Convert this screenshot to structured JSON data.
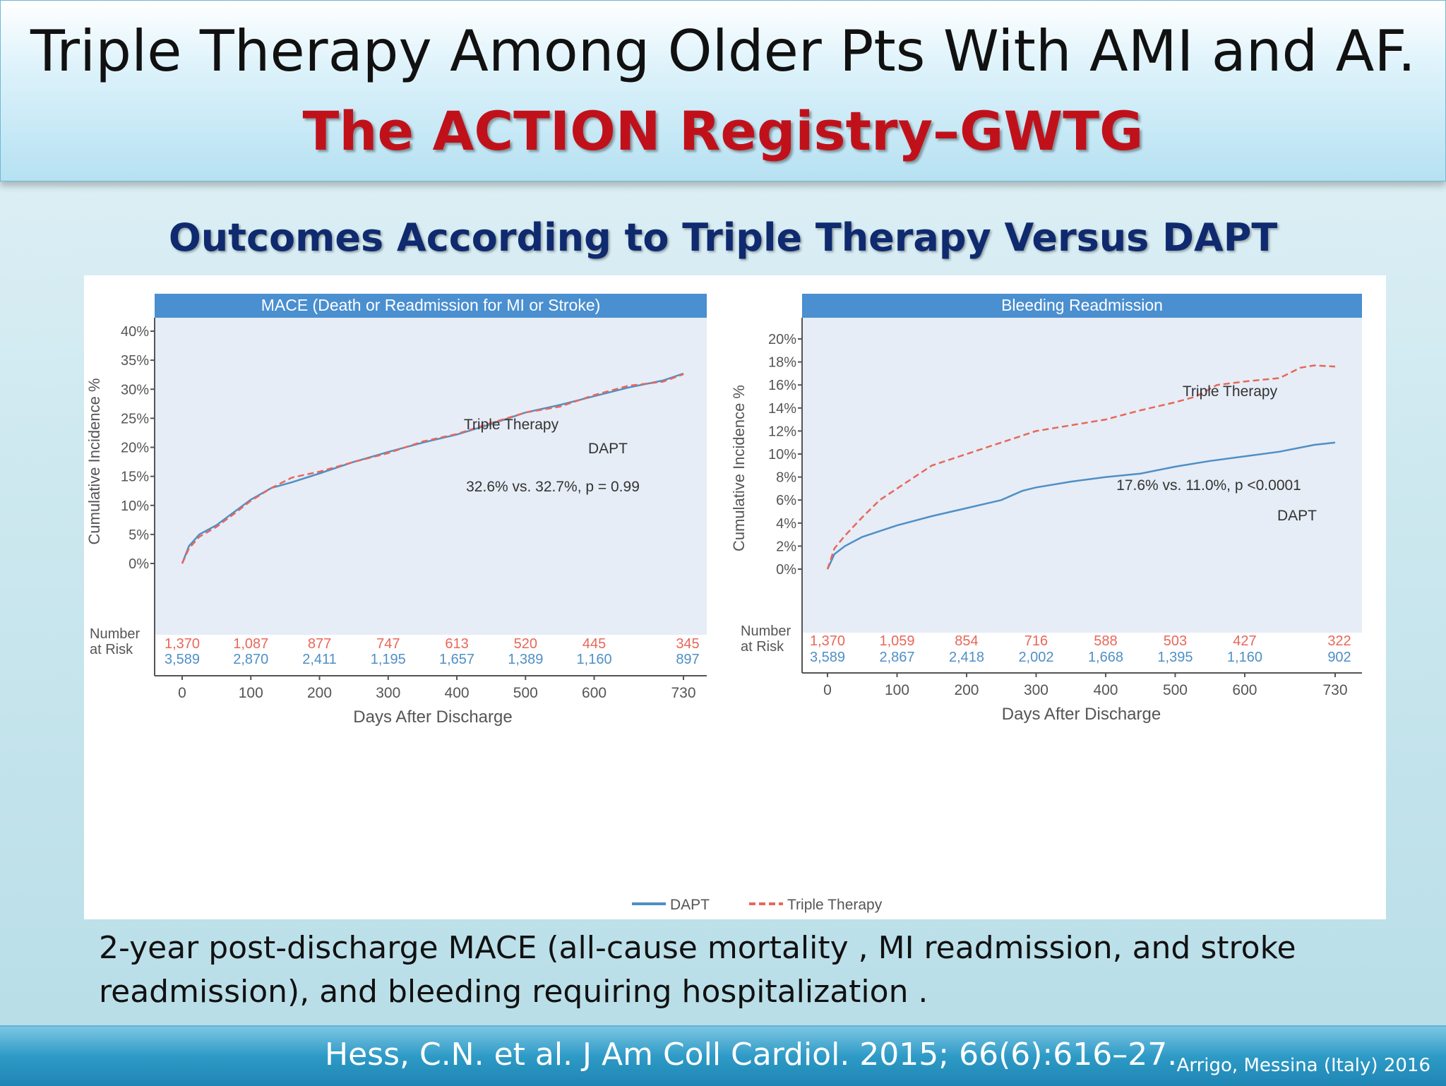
{
  "slide": {
    "title_line1": "Triple Therapy Among Older Pts With AMI and AF.",
    "title_line2": "The ACTION Registry–GWTG",
    "subtitle": "Outcomes According to Triple Therapy Versus DAPT",
    "caption_line1": "2-year post-discharge MACE (all-cause mortality , MI readmission, and stroke",
    "caption_line2": "readmission), and bleeding requiring hospitalization .",
    "reference": "Hess, C.N. et al. J Am Coll Cardiol. 2015; 66(6):616–27.",
    "credit": "Arrigo, Messina (Italy) 2016"
  },
  "legend": [
    {
      "label": "DAPT",
      "color": "#4f8fc6",
      "dash": false
    },
    {
      "label": "Triple Therapy",
      "color": "#e8675a",
      "dash": true
    }
  ],
  "chart_data": [
    {
      "type": "line",
      "title": "MACE (Death or Readmission for MI or Stroke)",
      "ylabel": "Cumulative Incidence %",
      "xlabel": "Days After Discharge",
      "xlim": [
        0,
        730
      ],
      "ylim": [
        0,
        40
      ],
      "x_ticks": [
        "0",
        "100",
        "200",
        "300",
        "400",
        "500",
        "600",
        "730"
      ],
      "x_tick_values": [
        0,
        100,
        200,
        300,
        400,
        500,
        600,
        730
      ],
      "y_ticks": [
        "0%",
        "5%",
        "10%",
        "15%",
        "20%",
        "25%",
        "30%",
        "35%",
        "40%"
      ],
      "y_tick_values": [
        0,
        5,
        10,
        15,
        20,
        25,
        30,
        35,
        40
      ],
      "annotation": "32.6% vs. 32.7%, p = 0.99",
      "line_labels": [
        "Triple Therapy",
        "DAPT"
      ],
      "series": [
        {
          "name": "DAPT",
          "color": "#4f8fc6",
          "dash": false,
          "x": [
            0,
            10,
            25,
            50,
            75,
            100,
            130,
            160,
            200,
            250,
            300,
            350,
            400,
            450,
            500,
            550,
            600,
            650,
            700,
            730
          ],
          "y": [
            0,
            3.0,
            5.0,
            6.6,
            8.8,
            11.0,
            13.0,
            14.0,
            15.5,
            17.5,
            19.2,
            20.8,
            22.2,
            24.0,
            26.0,
            27.3,
            28.8,
            30.3,
            31.5,
            32.7
          ]
        },
        {
          "name": "Triple Therapy",
          "color": "#e8675a",
          "dash": true,
          "x": [
            0,
            10,
            25,
            50,
            75,
            100,
            130,
            160,
            200,
            250,
            300,
            350,
            400,
            450,
            500,
            550,
            600,
            650,
            700,
            730
          ],
          "y": [
            0,
            2.6,
            4.6,
            6.3,
            8.5,
            10.8,
            13.0,
            14.8,
            15.8,
            17.5,
            19.0,
            21.0,
            22.3,
            24.2,
            26.0,
            27.0,
            29.0,
            30.6,
            31.3,
            32.6
          ]
        }
      ],
      "number_at_risk_label": "Number at Risk",
      "at_risk": {
        "triple_therapy": [
          "1,370",
          "1,087",
          "877",
          "747",
          "613",
          "520",
          "445",
          "345"
        ],
        "dapt": [
          "3,589",
          "2,870",
          "2,411",
          "1,195",
          "1,657",
          "1,389",
          "1,160",
          "897"
        ]
      }
    },
    {
      "type": "line",
      "title": "Bleeding Readmission",
      "ylabel": "Cumulative Incidence %",
      "xlabel": "Days After Discharge",
      "xlim": [
        0,
        730
      ],
      "ylim": [
        0,
        20
      ],
      "x_ticks": [
        "0",
        "100",
        "200",
        "300",
        "400",
        "500",
        "600",
        "730"
      ],
      "x_tick_values": [
        0,
        100,
        200,
        300,
        400,
        500,
        600,
        730
      ],
      "y_ticks": [
        "0%",
        "2%",
        "4%",
        "6%",
        "8%",
        "10%",
        "12%",
        "14%",
        "16%",
        "18%",
        "20%"
      ],
      "y_tick_values": [
        0,
        2,
        4,
        6,
        8,
        10,
        12,
        14,
        16,
        18,
        20
      ],
      "annotation": "17.6% vs. 11.0%, p <0.0001",
      "line_labels": [
        "Triple Therapy",
        "DAPT"
      ],
      "series": [
        {
          "name": "DAPT",
          "color": "#4f8fc6",
          "dash": false,
          "x": [
            0,
            10,
            25,
            50,
            75,
            100,
            150,
            200,
            250,
            280,
            300,
            350,
            400,
            450,
            500,
            550,
            600,
            650,
            700,
            730
          ],
          "y": [
            0,
            1.3,
            2.0,
            2.8,
            3.3,
            3.8,
            4.6,
            5.3,
            6.0,
            6.8,
            7.1,
            7.6,
            8.0,
            8.3,
            8.9,
            9.4,
            9.8,
            10.2,
            10.8,
            11.0
          ]
        },
        {
          "name": "Triple Therapy",
          "color": "#e8675a",
          "dash": true,
          "x": [
            0,
            10,
            25,
            50,
            75,
            100,
            125,
            150,
            200,
            250,
            300,
            350,
            400,
            450,
            500,
            530,
            560,
            600,
            650,
            680,
            700,
            730
          ],
          "y": [
            0,
            1.8,
            2.9,
            4.5,
            6.0,
            7.0,
            8.0,
            9.0,
            10.0,
            11.0,
            12.0,
            12.5,
            13.0,
            13.8,
            14.5,
            15.0,
            16.0,
            16.3,
            16.6,
            17.5,
            17.7,
            17.6
          ]
        }
      ],
      "number_at_risk_label": "Number at Risk",
      "at_risk": {
        "triple_therapy": [
          "1,370",
          "1,059",
          "854",
          "716",
          "588",
          "503",
          "427",
          "322"
        ],
        "dapt": [
          "3,589",
          "2,867",
          "2,418",
          "2,002",
          "1,668",
          "1,395",
          "1,160",
          "902"
        ]
      }
    }
  ]
}
